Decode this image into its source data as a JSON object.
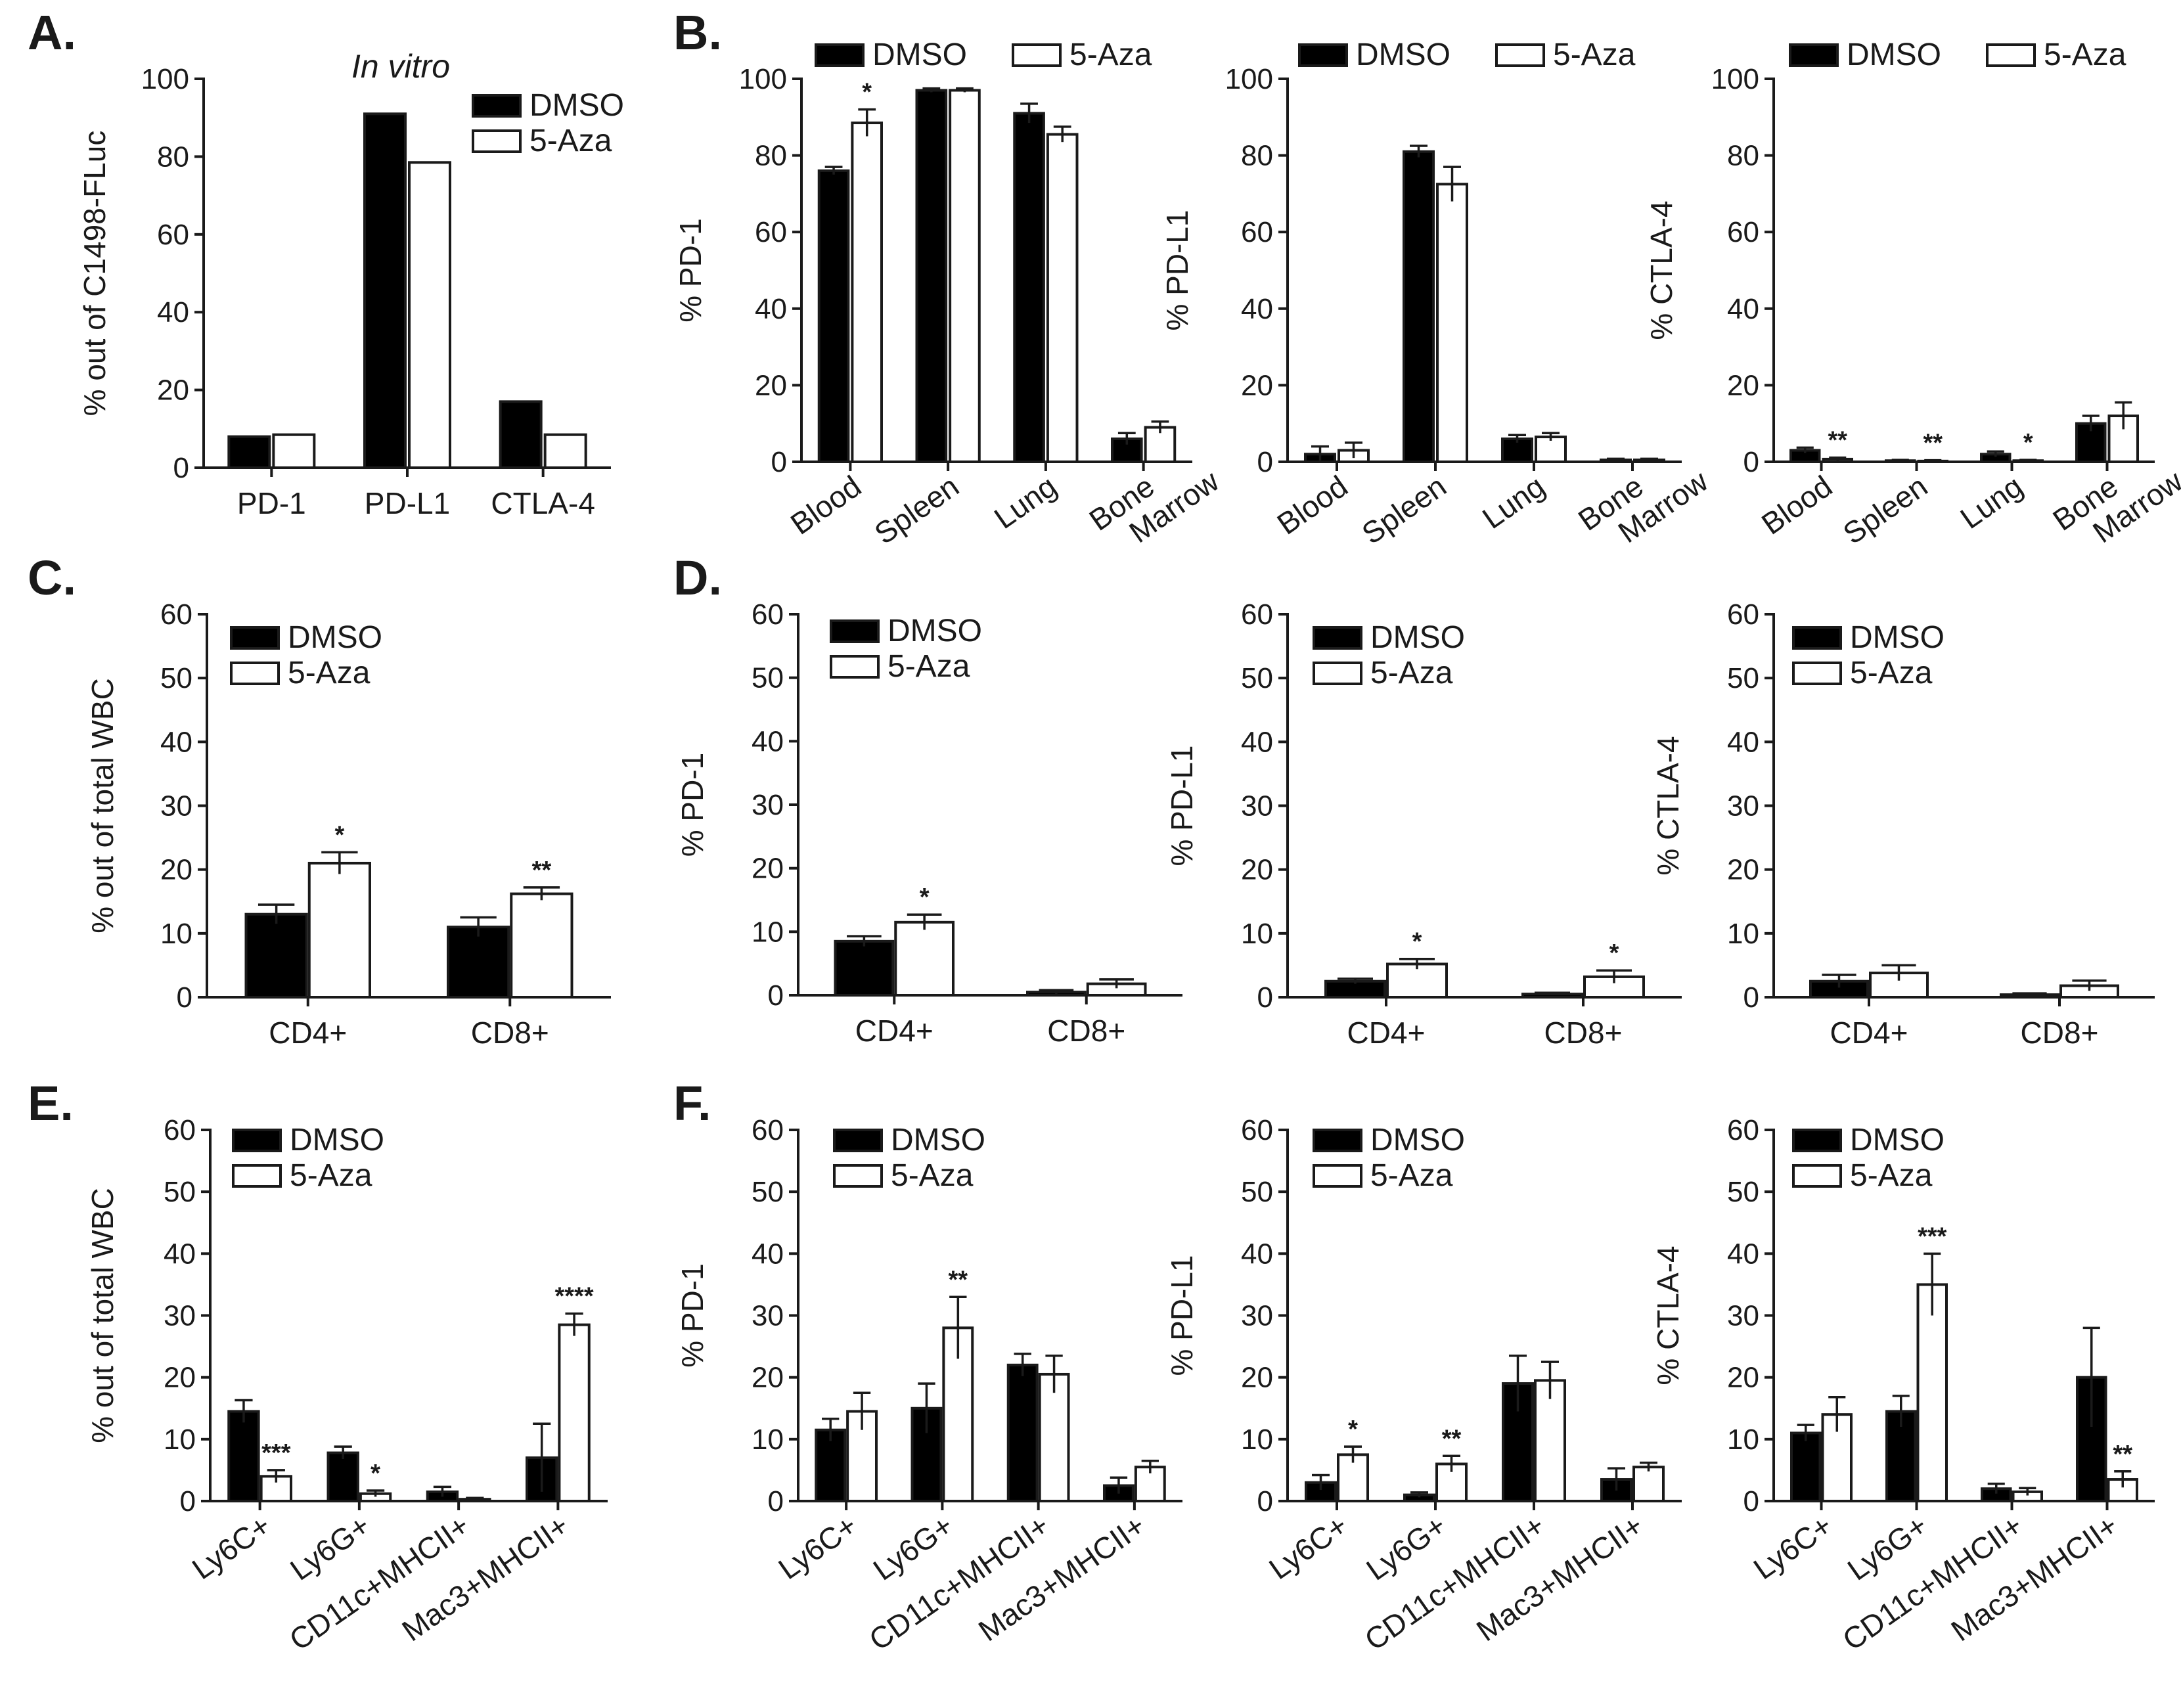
{
  "panel_letters": {
    "A": "A.",
    "B": "B.",
    "C": "C.",
    "D": "D.",
    "E": "E.",
    "F": "F."
  },
  "colors": {
    "dmso": "#000000",
    "aza": "#ffffff",
    "axis": "#1a1a1a"
  },
  "chart_data": [
    {
      "id": "A",
      "type": "bar",
      "title": "In vitro",
      "ylabel": "% out of C1498-FLuc",
      "ylim": [
        0,
        100
      ],
      "yticks": [
        0,
        20,
        40,
        60,
        80,
        100
      ],
      "categories": [
        "PD-1",
        "PD-L1",
        "CTLA-4"
      ],
      "series": [
        {
          "name": "DMSO",
          "values": [
            8,
            91,
            17
          ]
        },
        {
          "name": "5-Aza",
          "values": [
            8.5,
            78.5,
            8.5
          ]
        }
      ]
    },
    {
      "id": "B1",
      "type": "bar",
      "title": "",
      "ylabel": "% PD-1",
      "ylim": [
        0,
        100
      ],
      "yticks": [
        0,
        20,
        40,
        60,
        80,
        100
      ],
      "categories": [
        "Blood",
        "Spleen",
        "Lung",
        "Bone\nMarrow"
      ],
      "series": [
        {
          "name": "DMSO",
          "values": [
            76,
            97,
            91,
            6
          ],
          "errors": [
            1,
            0.5,
            2.5,
            1.5
          ]
        },
        {
          "name": "5-Aza",
          "values": [
            88.5,
            97,
            85.5,
            9
          ],
          "errors": [
            3.5,
            0.5,
            2,
            1.5
          ]
        }
      ],
      "significance": [
        {
          "category": 0,
          "label": "*"
        }
      ]
    },
    {
      "id": "B2",
      "type": "bar",
      "title": "",
      "ylabel": "% PD-L1",
      "ylim": [
        0,
        100
      ],
      "yticks": [
        0,
        20,
        40,
        60,
        80,
        100
      ],
      "categories": [
        "Blood",
        "Spleen",
        "Lung",
        "Bone\nMarrow"
      ],
      "series": [
        {
          "name": "DMSO",
          "values": [
            2,
            81,
            6,
            0.5
          ],
          "errors": [
            2,
            1.5,
            1,
            0.3
          ]
        },
        {
          "name": "5-Aza",
          "values": [
            3,
            72.5,
            6.5,
            0.5
          ],
          "errors": [
            2,
            4.5,
            1,
            0.3
          ]
        }
      ],
      "significance": []
    },
    {
      "id": "B3",
      "type": "bar",
      "title": "",
      "ylabel": "% CTLA-4",
      "ylim": [
        0,
        100
      ],
      "yticks": [
        0,
        20,
        40,
        60,
        80,
        100
      ],
      "categories": [
        "Blood",
        "Spleen",
        "Lung",
        "Bone\nMarrow"
      ],
      "series": [
        {
          "name": "DMSO",
          "values": [
            3,
            0.3,
            2,
            10
          ],
          "errors": [
            0.7,
            0.2,
            0.7,
            2
          ]
        },
        {
          "name": "5-Aza",
          "values": [
            0.7,
            0.2,
            0.3,
            12
          ],
          "errors": [
            0.4,
            0.2,
            0.2,
            3.5
          ]
        }
      ],
      "significance": [
        {
          "category": 0,
          "label": "**"
        },
        {
          "category": 1,
          "label": "**"
        },
        {
          "category": 2,
          "label": "*"
        }
      ]
    },
    {
      "id": "C",
      "type": "bar",
      "title": "",
      "ylabel": "% out of total WBC",
      "ylim": [
        0,
        60
      ],
      "yticks": [
        0,
        10,
        20,
        30,
        40,
        50,
        60
      ],
      "categories": [
        "CD4+",
        "CD8+"
      ],
      "series": [
        {
          "name": "DMSO",
          "values": [
            13,
            11
          ],
          "errors": [
            1.5,
            1.5
          ]
        },
        {
          "name": "5-Aza",
          "values": [
            21,
            16.2
          ],
          "errors": [
            1.7,
            1
          ]
        }
      ],
      "significance": [
        {
          "category": 0,
          "label": "*"
        },
        {
          "category": 1,
          "label": "**"
        }
      ]
    },
    {
      "id": "D1",
      "type": "bar",
      "title": "",
      "ylabel": "% PD-1",
      "ylim": [
        0,
        60
      ],
      "yticks": [
        0,
        10,
        20,
        30,
        40,
        50,
        60
      ],
      "categories": [
        "CD4+",
        "CD8+"
      ],
      "series": [
        {
          "name": "DMSO",
          "values": [
            8.5,
            0.5
          ],
          "errors": [
            0.8,
            0.3
          ]
        },
        {
          "name": "5-Aza",
          "values": [
            11.5,
            1.8
          ],
          "errors": [
            1.2,
            0.7
          ]
        }
      ],
      "significance": [
        {
          "category": 0,
          "label": "*"
        }
      ]
    },
    {
      "id": "D2",
      "type": "bar",
      "title": "",
      "ylabel": "% PD-L1",
      "ylim": [
        0,
        60
      ],
      "yticks": [
        0,
        10,
        20,
        30,
        40,
        50,
        60
      ],
      "categories": [
        "CD4+",
        "CD8+"
      ],
      "series": [
        {
          "name": "DMSO",
          "values": [
            2.5,
            0.5
          ],
          "errors": [
            0.4,
            0.2
          ]
        },
        {
          "name": "5-Aza",
          "values": [
            5.2,
            3.2
          ],
          "errors": [
            0.8,
            1
          ]
        }
      ],
      "significance": [
        {
          "category": 0,
          "label": "*"
        },
        {
          "category": 1,
          "label": "*"
        }
      ]
    },
    {
      "id": "D3",
      "type": "bar",
      "title": "",
      "ylabel": "% CTLA-4",
      "ylim": [
        0,
        60
      ],
      "yticks": [
        0,
        10,
        20,
        30,
        40,
        50,
        60
      ],
      "categories": [
        "CD4+",
        "CD8+"
      ],
      "series": [
        {
          "name": "DMSO",
          "values": [
            2.5,
            0.4
          ],
          "errors": [
            1,
            0.2
          ]
        },
        {
          "name": "5-Aza",
          "values": [
            3.8,
            1.8
          ],
          "errors": [
            1.2,
            0.8
          ]
        }
      ],
      "significance": []
    },
    {
      "id": "E",
      "type": "bar",
      "title": "",
      "ylabel": "% out of total WBC",
      "ylim": [
        0,
        60
      ],
      "yticks": [
        0,
        10,
        20,
        30,
        40,
        50,
        60
      ],
      "categories": [
        "Ly6C+",
        "Ly6G+",
        "CD11c+MHCII+",
        "Mac3+MHCII+"
      ],
      "series": [
        {
          "name": "DMSO",
          "values": [
            14.5,
            7.8,
            1.5,
            7
          ],
          "errors": [
            1.8,
            1,
            0.8,
            5.5
          ]
        },
        {
          "name": "5-Aza",
          "values": [
            4,
            1.2,
            0.3,
            28.5
          ],
          "errors": [
            1,
            0.5,
            0.2,
            1.8
          ]
        }
      ],
      "significance": [
        {
          "category": 0,
          "label": "***"
        },
        {
          "category": 1,
          "label": "*"
        },
        {
          "category": 3,
          "label": "****"
        }
      ]
    },
    {
      "id": "F1",
      "type": "bar",
      "title": "",
      "ylabel": "% PD-1",
      "ylim": [
        0,
        60
      ],
      "yticks": [
        0,
        10,
        20,
        30,
        40,
        50,
        60
      ],
      "categories": [
        "Ly6C+",
        "Ly6G+",
        "CD11c+MHCII+",
        "Mac3+MHCII+"
      ],
      "series": [
        {
          "name": "DMSO",
          "values": [
            11.5,
            15,
            22,
            2.5
          ],
          "errors": [
            1.8,
            4,
            1.8,
            1.3
          ]
        },
        {
          "name": "5-Aza",
          "values": [
            14.5,
            28,
            20.5,
            5.5
          ],
          "errors": [
            3,
            5,
            3,
            1
          ]
        }
      ],
      "significance": [
        {
          "category": 1,
          "label": "**"
        }
      ]
    },
    {
      "id": "F2",
      "type": "bar",
      "title": "",
      "ylabel": "% PD-L1",
      "ylim": [
        0,
        60
      ],
      "yticks": [
        0,
        10,
        20,
        30,
        40,
        50,
        60
      ],
      "categories": [
        "Ly6C+",
        "Ly6G+",
        "CD11c+MHCII+",
        "Mac3+MHCII+"
      ],
      "series": [
        {
          "name": "DMSO",
          "values": [
            3,
            1,
            19,
            3.5
          ],
          "errors": [
            1.2,
            0.4,
            4.5,
            1.8
          ]
        },
        {
          "name": "5-Aza",
          "values": [
            7.5,
            6,
            19.5,
            5.5
          ],
          "errors": [
            1.3,
            1.3,
            3,
            0.7
          ]
        }
      ],
      "significance": [
        {
          "category": 0,
          "label": "*"
        },
        {
          "category": 1,
          "label": "**"
        }
      ]
    },
    {
      "id": "F3",
      "type": "bar",
      "title": "",
      "ylabel": "% CTLA-4",
      "ylim": [
        0,
        60
      ],
      "yticks": [
        0,
        10,
        20,
        30,
        40,
        50,
        60
      ],
      "categories": [
        "Ly6C+",
        "Ly6G+",
        "CD11c+MHCII+",
        "Mac3+MHCII+"
      ],
      "series": [
        {
          "name": "DMSO",
          "values": [
            11,
            14.5,
            2,
            20
          ],
          "errors": [
            1.3,
            2.5,
            0.8,
            8
          ]
        },
        {
          "name": "5-Aza",
          "values": [
            14,
            35,
            1.5,
            3.5
          ],
          "errors": [
            2.8,
            5,
            0.6,
            1.3
          ]
        }
      ],
      "significance": [
        {
          "category": 1,
          "label": "***"
        },
        {
          "category": 3,
          "label": "**"
        }
      ]
    }
  ]
}
